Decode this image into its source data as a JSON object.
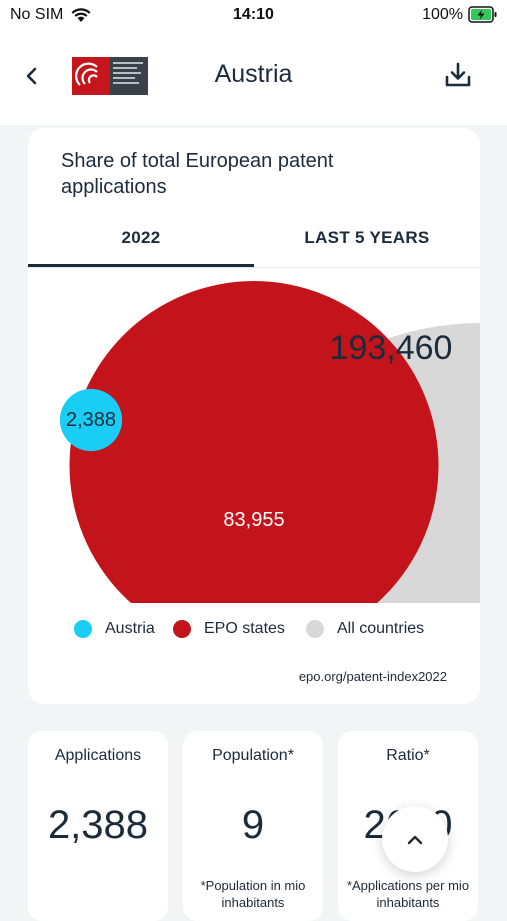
{
  "status_bar": {
    "carrier": "No SIM",
    "time": "14:10",
    "battery": "100%"
  },
  "header": {
    "title": "Austria",
    "back_icon": "chevron-left-icon",
    "download_icon": "download-icon",
    "logo": "european-patent-office-logo"
  },
  "card": {
    "title": "Share of total European patent applications",
    "tabs": [
      {
        "label": "2022",
        "selected": true
      },
      {
        "label": "LAST 5 YEARS",
        "selected": false
      }
    ],
    "source": "epo.org/patent-index2022"
  },
  "chart_data": {
    "type": "bubble",
    "series": [
      {
        "name": "Austria",
        "value": 2388,
        "label": "2,388",
        "color": "#19cdf5"
      },
      {
        "name": "EPO states",
        "value": 83955,
        "label": "83,955",
        "color": "#c4141b"
      },
      {
        "name": "All countries",
        "value": 193460,
        "label": "193,460",
        "color": "#d8d8d8"
      }
    ]
  },
  "stats": [
    {
      "label": "Applications",
      "value": "2,388",
      "footnote": ""
    },
    {
      "label": "Population*",
      "value": "9",
      "footnote": "*Population in mio inhabitants"
    },
    {
      "label": "Ratio*",
      "value": "2670",
      "footnote": "*Applications per mio inhabitants"
    }
  ],
  "colors": {
    "accent": "#1c2b3a",
    "background": "#f3f4f6"
  },
  "scroll_top_icon": "chevron-up-icon"
}
